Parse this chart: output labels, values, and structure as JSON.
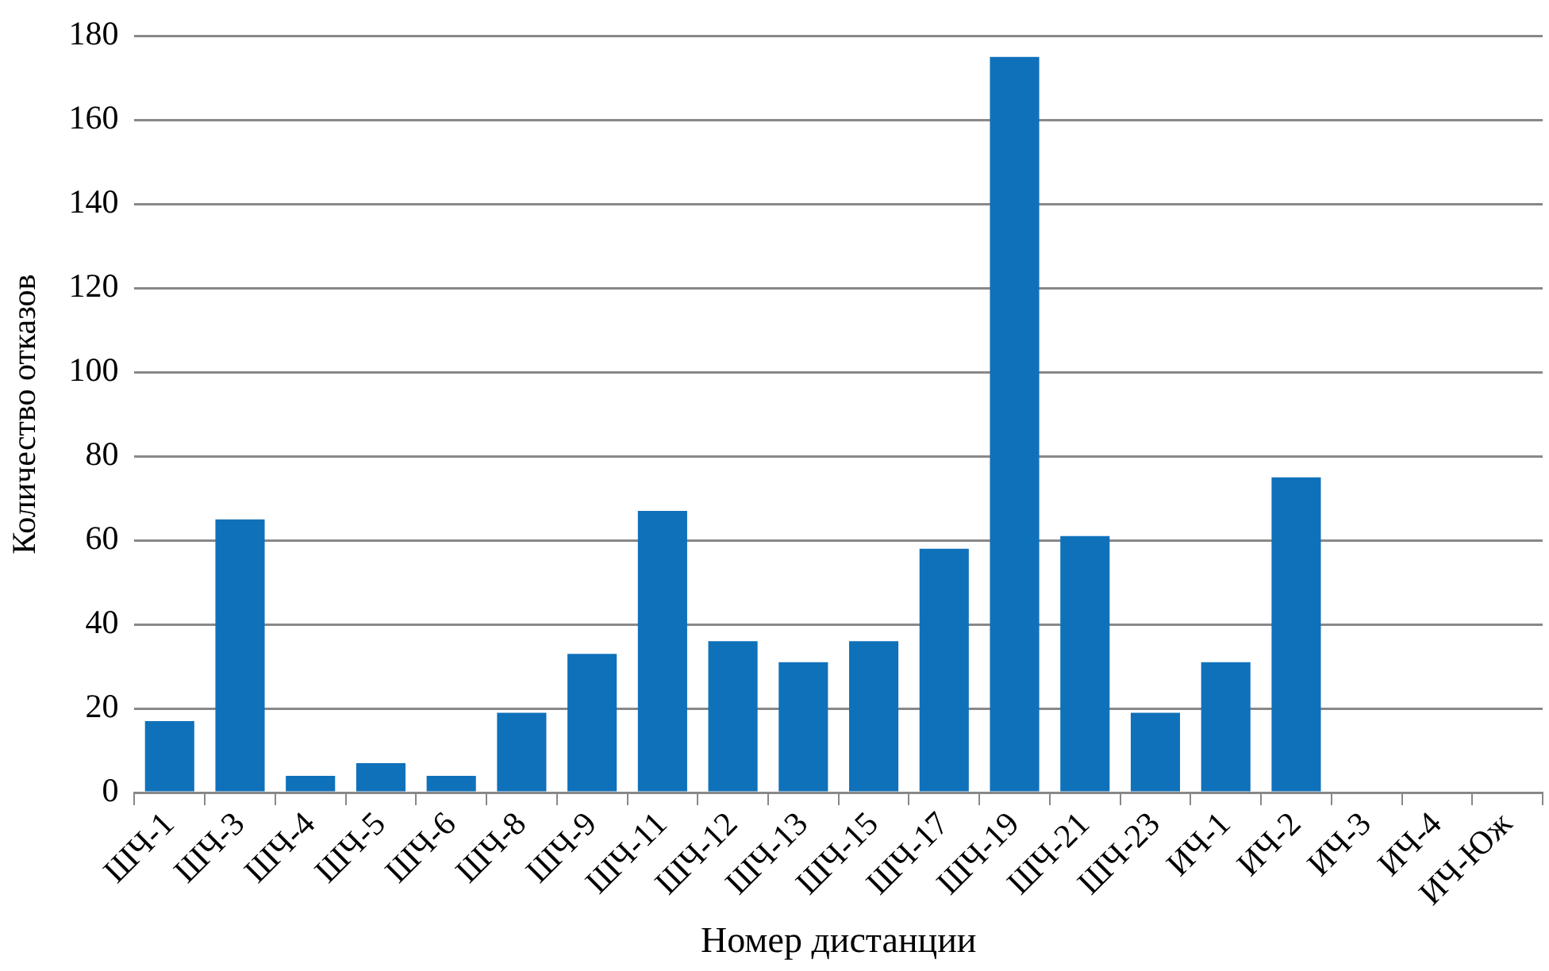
{
  "chart_data": {
    "type": "bar",
    "xlabel": "Номер дистанции",
    "ylabel": "Количество отказов",
    "categories": [
      "ШЧ-1",
      "ШЧ-3",
      "ШЧ-4",
      "ШЧ-5",
      "ШЧ-6",
      "ШЧ-8",
      "ШЧ-9",
      "ШЧ-11",
      "ШЧ-12",
      "ШЧ-13",
      "ШЧ-15",
      "ШЧ-17",
      "ШЧ-19",
      "ШЧ-21",
      "ШЧ-23",
      "ИЧ-1",
      "ИЧ-2",
      "ИЧ-3",
      "ИЧ-4",
      "ИЧ-Юж"
    ],
    "values": [
      17,
      65,
      4,
      7,
      4,
      19,
      33,
      67,
      36,
      31,
      36,
      58,
      175,
      61,
      19,
      31,
      75,
      0,
      0,
      0
    ],
    "color": "#0f71ba",
    "ylim": [
      0,
      180
    ],
    "yticks": [
      0,
      20,
      40,
      60,
      80,
      100,
      120,
      140,
      160,
      180
    ],
    "grid": "y",
    "legend": false
  }
}
